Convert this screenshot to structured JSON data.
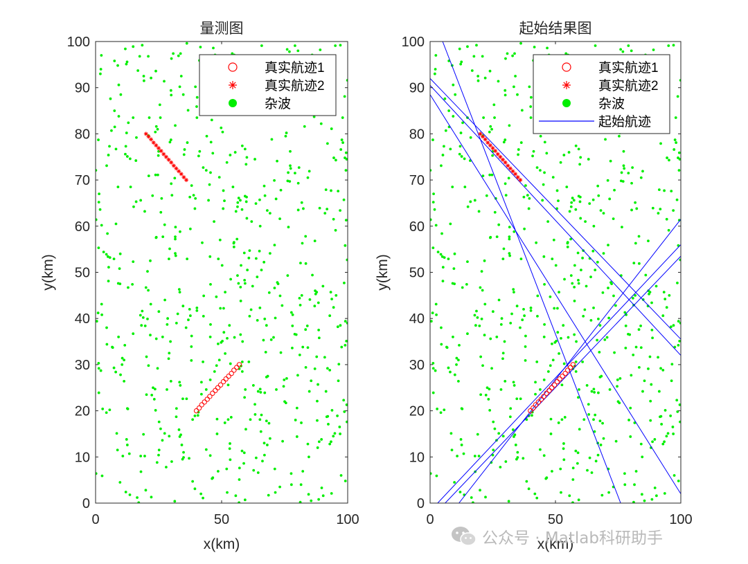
{
  "watermark": {
    "text": "公众号 · Matlab科研助手",
    "icon": "wechat-icon"
  },
  "colors": {
    "clutter": "#00ee00",
    "track": "#ff0000",
    "start_line": "#0000ff",
    "axis": "#262626"
  },
  "chart_data": [
    {
      "type": "scatter",
      "title": "量测图",
      "xlabel": "x(km)",
      "ylabel": "y(km)",
      "xlim": [
        0,
        100
      ],
      "ylim": [
        0,
        100
      ],
      "xticks": [
        0,
        50,
        100
      ],
      "yticks": [
        0,
        10,
        20,
        30,
        40,
        50,
        60,
        70,
        80,
        90,
        100
      ],
      "grid": false,
      "legend_position": "top-right",
      "legend": [
        "真实航迹1",
        "真实航迹2",
        "杂波"
      ],
      "series": [
        {
          "name": "真实航迹1",
          "marker": "circle",
          "x": [
            40,
            41.1,
            42.1,
            43.2,
            44.3,
            45.3,
            46.4,
            47.5,
            48.5,
            49.6,
            50.7,
            51.7,
            52.8,
            53.9,
            54.9,
            56,
            57
          ],
          "y": [
            20,
            20.6,
            21.3,
            21.9,
            22.5,
            23.1,
            23.8,
            24.4,
            25,
            25.6,
            26.3,
            26.9,
            27.5,
            28.1,
            28.8,
            29.4,
            30
          ]
        },
        {
          "name": "真实航迹2",
          "marker": "asterisk",
          "x": [
            20,
            21,
            22,
            23,
            24,
            25,
            26,
            27,
            28,
            29,
            30,
            31,
            32,
            33,
            34,
            35,
            36
          ],
          "y": [
            80,
            79.4,
            78.8,
            78.1,
            77.5,
            76.9,
            76.3,
            75.6,
            75,
            74.4,
            73.8,
            73.1,
            72.5,
            71.9,
            71.3,
            70.6,
            70
          ]
        },
        {
          "name": "杂波",
          "marker": "dot",
          "x": [],
          "y": []
        }
      ]
    },
    {
      "type": "scatter",
      "title": "起始结果图",
      "xlabel": "x(km)",
      "ylabel": "y(km)",
      "xlim": [
        0,
        100
      ],
      "ylim": [
        0,
        100
      ],
      "xticks": [
        0,
        50,
        100
      ],
      "yticks": [
        0,
        10,
        20,
        30,
        40,
        50,
        60,
        70,
        80,
        90,
        100
      ],
      "grid": false,
      "legend_position": "top-right",
      "legend": [
        "真实航迹1",
        "真实航迹2",
        "杂波",
        "起始航迹"
      ],
      "series": [
        {
          "name": "真实航迹1",
          "marker": "circle",
          "x": [
            40,
            41.1,
            42.1,
            43.2,
            44.3,
            45.3,
            46.4,
            47.5,
            48.5,
            49.6,
            50.7,
            51.7,
            52.8,
            53.9,
            54.9,
            56,
            57
          ],
          "y": [
            20,
            20.6,
            21.3,
            21.9,
            22.5,
            23.1,
            23.8,
            24.4,
            25,
            25.6,
            26.3,
            26.9,
            27.5,
            28.1,
            28.8,
            29.4,
            30
          ]
        },
        {
          "name": "真实航迹2",
          "marker": "asterisk",
          "x": [
            20,
            21,
            22,
            23,
            24,
            25,
            26,
            27,
            28,
            29,
            30,
            31,
            32,
            33,
            34,
            35,
            36
          ],
          "y": [
            80,
            79.4,
            78.8,
            78.1,
            77.5,
            76.9,
            76.3,
            75.6,
            75,
            74.4,
            73.8,
            73.1,
            72.5,
            71.9,
            71.3,
            70.6,
            70
          ]
        },
        {
          "name": "杂波",
          "marker": "dot",
          "x": [],
          "y": []
        },
        {
          "name": "起始航迹",
          "marker": "line",
          "lines": [
            {
              "x": [
                0,
                100
              ],
              "y": [
                92,
                35.5
              ]
            },
            {
              "x": [
                0,
                100
              ],
              "y": [
                90.5,
                32
              ]
            },
            {
              "x": [
                0,
                100
              ],
              "y": [
                88.5,
                2
              ]
            },
            {
              "x": [
                5,
                76
              ],
              "y": [
                100,
                0
              ]
            },
            {
              "x": [
                3,
                100
              ],
              "y": [
                0,
                56
              ]
            },
            {
              "x": [
                6,
                100
              ],
              "y": [
                0,
                53.5
              ]
            },
            {
              "x": [
                11.5,
                100
              ],
              "y": [
                0,
                61.5
              ]
            }
          ]
        }
      ]
    }
  ]
}
